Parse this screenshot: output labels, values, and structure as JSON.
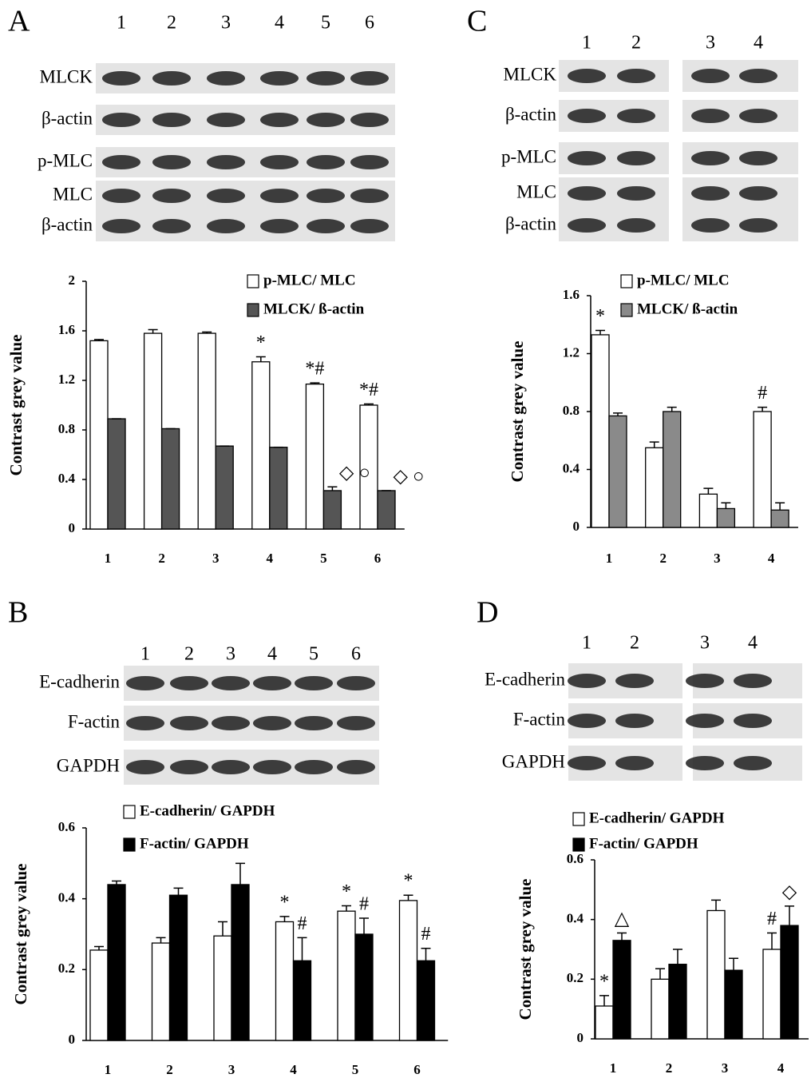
{
  "chart_data": [
    {
      "type": "bar",
      "panel": "A",
      "blot": {
        "lanes": [
          "1",
          "2",
          "3",
          "4",
          "5",
          "6"
        ],
        "rows": [
          "MLCK",
          "β-actin",
          "p-MLC",
          "MLC",
          "β-actin"
        ]
      },
      "ylabel": "Contrast grey value",
      "categories": [
        "1",
        "2",
        "3",
        "4",
        "5",
        "6"
      ],
      "ylim": [
        0,
        2
      ],
      "yticks": [
        0,
        0.4,
        0.8,
        1.2,
        1.6,
        2
      ],
      "series": [
        {
          "name": "p-MLC/ MLC",
          "color": "#ffffff",
          "values": [
            1.52,
            1.58,
            1.58,
            1.35,
            1.17,
            1.0
          ],
          "errors": [
            0.01,
            0.03,
            0.01,
            0.04,
            0.01,
            0.01
          ],
          "labels": [
            null,
            null,
            null,
            "*",
            "*#",
            "*#"
          ]
        },
        {
          "name": "MLCK/ ß-actin",
          "color": "#555555",
          "values": [
            0.89,
            0.81,
            0.67,
            0.66,
            0.31,
            0.31
          ],
          "errors": [
            0.0,
            0.0,
            0.0,
            0.0,
            0.03,
            0.0
          ],
          "labels": [
            null,
            null,
            null,
            null,
            "◇ ○",
            "◇ ○"
          ]
        }
      ]
    },
    {
      "type": "bar",
      "panel": "C",
      "blot": {
        "lanes": [
          "1",
          "2",
          "3",
          "4"
        ],
        "rows": [
          "MLCK",
          "β-actin",
          "p-MLC",
          "MLC",
          "β-actin"
        ]
      },
      "ylabel": "Contrast grey value",
      "categories": [
        "1",
        "2",
        "3",
        "4"
      ],
      "ylim": [
        0,
        1.6
      ],
      "yticks": [
        0,
        0.4,
        0.8,
        1.2,
        1.6
      ],
      "series": [
        {
          "name": "p-MLC/ MLC",
          "color": "#ffffff",
          "values": [
            1.33,
            0.55,
            0.23,
            0.8
          ],
          "errors": [
            0.03,
            0.04,
            0.04,
            0.03
          ],
          "labels": [
            "*",
            null,
            null,
            "#"
          ]
        },
        {
          "name": "MLCK/ ß-actin",
          "color": "#8a8a8a",
          "values": [
            0.77,
            0.8,
            0.13,
            0.12
          ],
          "errors": [
            0.02,
            0.03,
            0.04,
            0.05
          ],
          "labels": [
            null,
            null,
            null,
            null
          ]
        }
      ]
    },
    {
      "type": "bar",
      "panel": "B",
      "blot": {
        "lanes": [
          "1",
          "2",
          "3",
          "4",
          "5",
          "6"
        ],
        "rows": [
          "E-cadherin",
          "F-actin",
          "GAPDH"
        ]
      },
      "ylabel": "Contrast grey value",
      "categories": [
        "1",
        "2",
        "3",
        "4",
        "5",
        "6"
      ],
      "ylim": [
        0,
        0.6
      ],
      "yticks": [
        0,
        0.2,
        0.4,
        0.6
      ],
      "series": [
        {
          "name": "E-cadherin/ GAPDH",
          "color": "#ffffff",
          "values": [
            0.255,
            0.275,
            0.295,
            0.335,
            0.365,
            0.395
          ],
          "errors": [
            0.01,
            0.015,
            0.04,
            0.015,
            0.015,
            0.015
          ],
          "labels": [
            null,
            null,
            null,
            "*",
            "*",
            "*"
          ]
        },
        {
          "name": "F-actin/ GAPDH",
          "color": "#000000",
          "values": [
            0.44,
            0.41,
            0.44,
            0.225,
            0.3,
            0.225
          ],
          "errors": [
            0.01,
            0.02,
            0.06,
            0.065,
            0.045,
            0.035
          ],
          "labels": [
            null,
            null,
            null,
            "#",
            "#",
            "#"
          ]
        }
      ]
    },
    {
      "type": "bar",
      "panel": "D",
      "blot": {
        "lanes": [
          "1",
          "2",
          "3",
          "4"
        ],
        "rows": [
          "E-cadherin",
          "F-actin",
          "GAPDH"
        ]
      },
      "ylabel": "Contrast grey value",
      "categories": [
        "1",
        "2",
        "3",
        "4"
      ],
      "ylim": [
        0,
        0.6
      ],
      "yticks": [
        0,
        0.2,
        0.4,
        0.6
      ],
      "series": [
        {
          "name": "E-cadherin/ GAPDH",
          "color": "#ffffff",
          "values": [
            0.11,
            0.2,
            0.43,
            0.3
          ],
          "errors": [
            0.035,
            0.035,
            0.035,
            0.055
          ],
          "labels": [
            "*",
            null,
            null,
            "#"
          ]
        },
        {
          "name": "F-actin/ GAPDH",
          "color": "#000000",
          "values": [
            0.33,
            0.25,
            0.23,
            0.38
          ],
          "errors": [
            0.025,
            0.05,
            0.04,
            0.065
          ],
          "labels": [
            "△",
            null,
            null,
            "◇"
          ]
        }
      ]
    }
  ]
}
